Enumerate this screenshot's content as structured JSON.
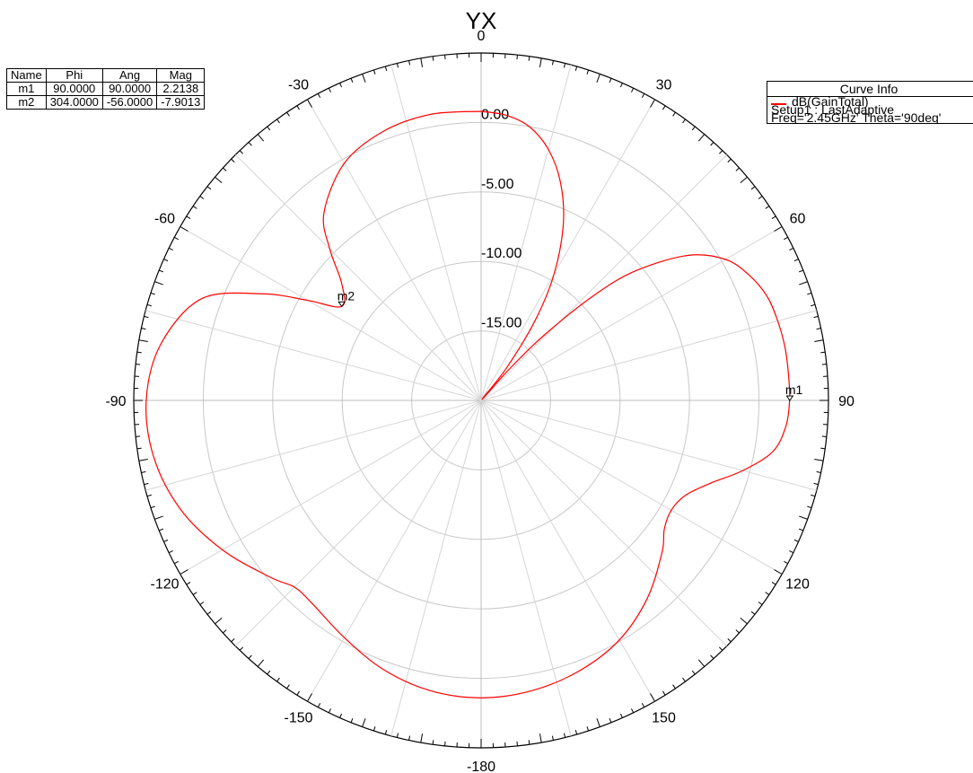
{
  "chart_data": {
    "type": "polar",
    "title": "YX",
    "angle_ticks": [
      "0",
      "30",
      "60",
      "90",
      "120",
      "150",
      "-180",
      "-150",
      "-120",
      "-90",
      "-60",
      "-30"
    ],
    "radial_ticks": [
      "0.00",
      "-5.00",
      "-10.00",
      "-15.00"
    ],
    "radial_range_db": [
      -20,
      5
    ],
    "radial_grid_db": [
      -20,
      -15,
      -10,
      -5,
      0,
      5
    ],
    "series": [
      {
        "name": "dB(GainTotal)",
        "color": "#ff0000",
        "points": [
          {
            "ang": 0,
            "db": 0.8
          },
          {
            "ang": 5,
            "db": 0.6
          },
          {
            "ang": 10,
            "db": 0.0
          },
          {
            "ang": 15,
            "db": -1.3
          },
          {
            "ang": 20,
            "db": -3.3
          },
          {
            "ang": 25,
            "db": -6.0
          },
          {
            "ang": 30,
            "db": -9.5
          },
          {
            "ang": 34,
            "db": -13.0
          },
          {
            "ang": 38,
            "db": -17.0
          },
          {
            "ang": 40,
            "db": -19.9
          },
          {
            "ang": 42,
            "db": -17.0
          },
          {
            "ang": 44,
            "db": -13.5
          },
          {
            "ang": 47,
            "db": -9.0
          },
          {
            "ang": 50,
            "db": -5.5
          },
          {
            "ang": 55,
            "db": -1.8
          },
          {
            "ang": 60,
            "db": 0.3
          },
          {
            "ang": 65,
            "db": 1.3
          },
          {
            "ang": 70,
            "db": 1.9
          },
          {
            "ang": 75,
            "db": 2.1
          },
          {
            "ang": 80,
            "db": 2.2
          },
          {
            "ang": 85,
            "db": 2.2
          },
          {
            "ang": 90,
            "db": 2.2
          },
          {
            "ang": 95,
            "db": 2.0
          },
          {
            "ang": 100,
            "db": 1.3
          },
          {
            "ang": 105,
            "db": -0.5
          },
          {
            "ang": 110,
            "db": -2.5
          },
          {
            "ang": 115,
            "db": -3.8
          },
          {
            "ang": 120,
            "db": -4.2
          },
          {
            "ang": 125,
            "db": -3.9
          },
          {
            "ang": 130,
            "db": -3.0
          },
          {
            "ang": 140,
            "db": -1.4
          },
          {
            "ang": 150,
            "db": -0.1
          },
          {
            "ang": 160,
            "db": 0.7
          },
          {
            "ang": 170,
            "db": 1.2
          },
          {
            "ang": 180,
            "db": 1.4
          },
          {
            "ang": 190,
            "db": 1.2
          },
          {
            "ang": 200,
            "db": 0.6
          },
          {
            "ang": 210,
            "db": -0.3
          },
          {
            "ang": 220,
            "db": -1.0
          },
          {
            "ang": 225,
            "db": -1.0
          },
          {
            "ang": 230,
            "db": -0.2
          },
          {
            "ang": 240,
            "db": 1.5
          },
          {
            "ang": 250,
            "db": 3.0
          },
          {
            "ang": 260,
            "db": 3.9
          },
          {
            "ang": 270,
            "db": 4.1
          },
          {
            "ang": 280,
            "db": 3.4
          },
          {
            "ang": 290,
            "db": 1.4
          },
          {
            "ang": 296,
            "db": -2.5
          },
          {
            "ang": 300,
            "db": -5.6
          },
          {
            "ang": 304,
            "db": -7.9
          },
          {
            "ang": 310,
            "db": -6.9
          },
          {
            "ang": 315,
            "db": -4.6
          },
          {
            "ang": 320,
            "db": -2.4
          },
          {
            "ang": 330,
            "db": -0.3
          },
          {
            "ang": 340,
            "db": 0.6
          },
          {
            "ang": 350,
            "db": 0.9
          },
          {
            "ang": 360,
            "db": 0.8
          }
        ]
      }
    ],
    "markers": [
      {
        "label": "m1",
        "ang": 90,
        "db": 2.2138
      },
      {
        "label": "m2",
        "ang": -56,
        "db": -7.9013
      }
    ],
    "grid": true
  },
  "marker_table": {
    "headers": [
      "Name",
      "Phi",
      "Ang",
      "Mag"
    ],
    "rows": [
      [
        "m1",
        "90.0000",
        "90.0000",
        "2.2138"
      ],
      [
        "m2",
        "304.0000",
        "-56.0000",
        "-7.9013"
      ]
    ]
  },
  "curve_info": {
    "header": "Curve Info",
    "trace": "dB(GainTotal)",
    "setup": "Setup1 : LastAdaptive",
    "freq": "Freq='2.45GHz' Theta='90deg'",
    "color": "#ff0000"
  }
}
